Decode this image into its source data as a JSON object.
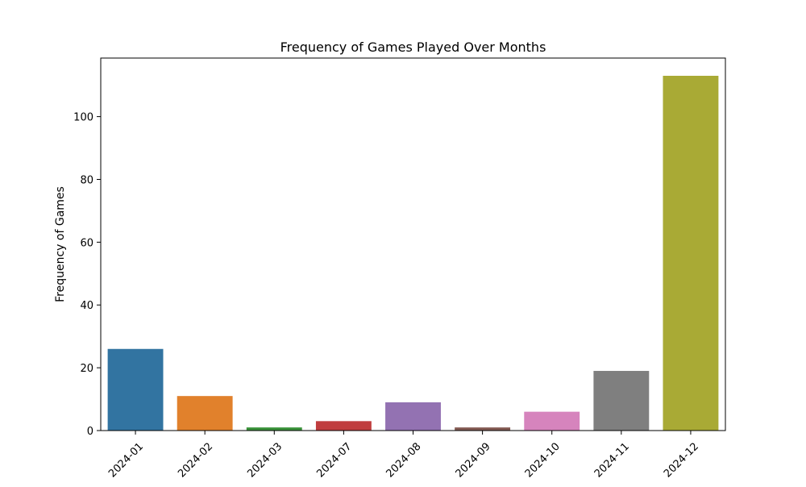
{
  "chart_data": {
    "type": "bar",
    "title": "Frequency of Games Played Over Months",
    "xlabel": "",
    "ylabel": "Frequency of Games",
    "categories": [
      "2024-01",
      "2024-02",
      "2024-03",
      "2024-07",
      "2024-08",
      "2024-09",
      "2024-10",
      "2024-11",
      "2024-12"
    ],
    "values": [
      26,
      11,
      1,
      3,
      9,
      1,
      6,
      19,
      113
    ],
    "colors": [
      "#3274a1",
      "#e1812c",
      "#3a923a",
      "#c03d3e",
      "#9372b2",
      "#845b53",
      "#d684bd",
      "#7f7f7f",
      "#a9aa35"
    ],
    "ylim": [
      0,
      118.65
    ],
    "yticks": [
      0,
      20,
      40,
      60,
      80,
      100
    ],
    "grid": false,
    "legend": false
  }
}
